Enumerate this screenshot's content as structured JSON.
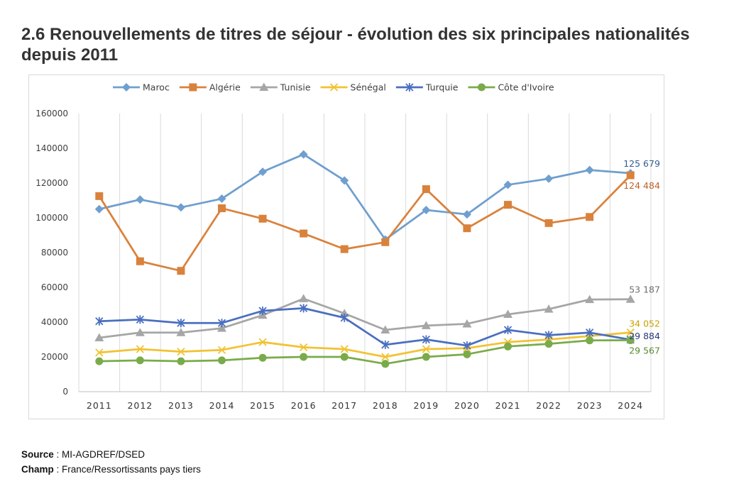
{
  "title": "2.6 Renouvellements de titres de séjour - évolution des six principales nationalités depuis 2011",
  "footer": {
    "source_label": "Source",
    "source_text": "MI-AGDREF/DSED",
    "champ_label": "Champ",
    "champ_text": "France/Ressortissants pays tiers"
  },
  "chart_data": {
    "type": "line",
    "title": "",
    "xlabel": "",
    "ylabel": "",
    "categories": [
      "2011",
      "2012",
      "2013",
      "2014",
      "2015",
      "2016",
      "2017",
      "2018",
      "2019",
      "2020",
      "2021",
      "2022",
      "2023",
      "2024"
    ],
    "ylim": [
      0,
      160000
    ],
    "yticks": [
      0,
      20000,
      40000,
      60000,
      80000,
      100000,
      120000,
      140000,
      160000
    ],
    "ytick_labels": [
      "0",
      "20000",
      "40000",
      "60000",
      "80000",
      "100000",
      "120000",
      "140000",
      "160000"
    ],
    "grid": "vertical",
    "legend_position": "top",
    "series": [
      {
        "name": "Maroc",
        "color": "#6f9fcf",
        "marker": "diamond",
        "values": [
          105000,
          110500,
          106000,
          111000,
          126500,
          136500,
          121500,
          87500,
          104500,
          102000,
          119000,
          122500,
          127500,
          125679
        ],
        "end_label": "125 679",
        "end_label_color": "#2f5f8f"
      },
      {
        "name": "Algérie",
        "color": "#d9823c",
        "marker": "square",
        "values": [
          112500,
          75000,
          69500,
          105500,
          99500,
          91000,
          82000,
          86000,
          116500,
          94000,
          107500,
          97000,
          100500,
          124484
        ],
        "end_label": "124 484",
        "end_label_color": "#c0612a"
      },
      {
        "name": "Tunisie",
        "color": "#a6a6a6",
        "marker": "triangle",
        "values": [
          31000,
          34000,
          34000,
          36500,
          44000,
          53500,
          45000,
          35500,
          38000,
          39000,
          44500,
          47500,
          53000,
          53187
        ],
        "end_label": "53 187",
        "end_label_color": "#6e6e6e"
      },
      {
        "name": "Sénégal",
        "color": "#f2c232",
        "marker": "star",
        "values": [
          22500,
          24500,
          23000,
          24000,
          28500,
          25500,
          24500,
          20000,
          24500,
          25000,
          28500,
          30000,
          32000,
          34052
        ],
        "end_label": "34 052",
        "end_label_color": "#c9a000"
      },
      {
        "name": "Turquie",
        "color": "#4a6fc0",
        "marker": "asterisk",
        "values": [
          40500,
          41500,
          39500,
          39500,
          46500,
          48000,
          42500,
          27000,
          30000,
          26500,
          35500,
          32500,
          34000,
          29884
        ],
        "end_label": "29 884",
        "end_label_color": "#2a3a7a"
      },
      {
        "name": "Côte d'Ivoire",
        "color": "#7aab4a",
        "marker": "circle",
        "values": [
          17500,
          18000,
          17500,
          18000,
          19500,
          20000,
          20000,
          16000,
          20000,
          21500,
          26000,
          27500,
          29500,
          29567
        ],
        "end_label": "29 567",
        "end_label_color": "#5a8a2f"
      }
    ]
  }
}
